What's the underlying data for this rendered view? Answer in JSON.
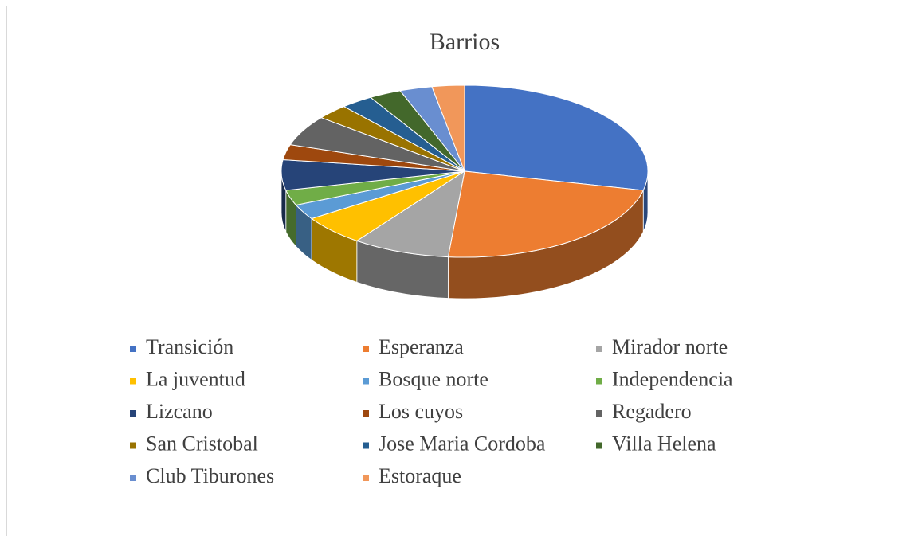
{
  "chart_data": {
    "type": "pie3d",
    "title": "Barrios",
    "categories": [
      "Transición",
      "Esperanza",
      "Mirador norte",
      "La juventud",
      "Bosque norte",
      "Independencia",
      "Lizcano",
      "Los cuyos",
      "Regadero",
      "San Cristobal",
      "Jose Maria Cordoba",
      "Villa Helena",
      "Club Tiburones",
      "Estoraque"
    ],
    "values": [
      10,
      8,
      3,
      2,
      1,
      1,
      2,
      1,
      2,
      1,
      1,
      1,
      1,
      1
    ],
    "colors": [
      "#4472c4",
      "#ed7d31",
      "#a5a5a5",
      "#ffc000",
      "#5b9bd5",
      "#70ad47",
      "#264478",
      "#9e480e",
      "#636363",
      "#997300",
      "#255e91",
      "#43682b",
      "#698ed0",
      "#f1975a"
    ],
    "legend": "bottom"
  }
}
